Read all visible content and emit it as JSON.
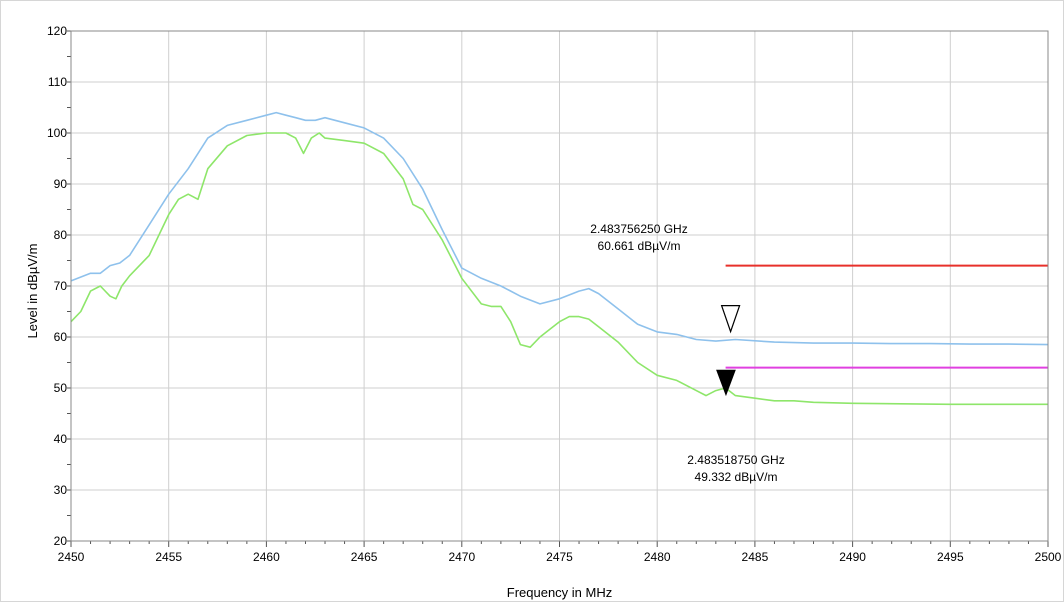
{
  "chart_data": {
    "type": "line",
    "title": "",
    "xlabel": "Frequency in MHz",
    "ylabel": "Level in dBµV/m",
    "xlim": [
      2450,
      2500
    ],
    "ylim": [
      20,
      120
    ],
    "x_ticks": [
      2450,
      2455,
      2460,
      2465,
      2470,
      2475,
      2480,
      2485,
      2490,
      2495,
      2500
    ],
    "y_ticks": [
      20,
      30,
      40,
      50,
      60,
      70,
      80,
      90,
      100,
      110,
      120
    ],
    "grid": true,
    "legend": "none",
    "series": [
      {
        "color": "#8ec1ec",
        "x": [
          2450,
          2451,
          2451.5,
          2452,
          2452.5,
          2453,
          2454,
          2455,
          2456,
          2456.5,
          2457,
          2458,
          2459,
          2460,
          2460.5,
          2461,
          2461.5,
          2462,
          2462.5,
          2463,
          2464,
          2465,
          2466,
          2467,
          2468,
          2469,
          2470,
          2471,
          2472,
          2473,
          2474,
          2475,
          2476,
          2476.5,
          2477,
          2478,
          2479,
          2480,
          2481,
          2482,
          2483,
          2484,
          2486,
          2488,
          2490,
          2492,
          2494,
          2496,
          2498,
          2500
        ],
        "y": [
          71,
          72.5,
          72.5,
          74,
          74.5,
          76,
          82,
          88,
          93,
          96,
          99,
          101.5,
          102.5,
          103.5,
          104,
          103.5,
          103,
          102.5,
          102.5,
          103,
          102,
          101,
          99,
          95,
          89,
          81,
          73.5,
          71.5,
          70,
          68,
          66.5,
          67.5,
          69,
          69.5,
          68.5,
          65.5,
          62.5,
          61,
          60.5,
          59.5,
          59.2,
          59.5,
          59,
          58.8,
          58.8,
          58.7,
          58.7,
          58.6,
          58.6,
          58.5
        ]
      },
      {
        "color": "#8ee66a",
        "x": [
          2450,
          2450.5,
          2451,
          2451.5,
          2452,
          2452.3,
          2452.6,
          2453,
          2454,
          2455,
          2455.5,
          2456,
          2456.5,
          2457,
          2458,
          2459,
          2460,
          2461,
          2461.5,
          2461.9,
          2462.3,
          2462.7,
          2463,
          2464,
          2465,
          2466,
          2467,
          2467.5,
          2468,
          2469,
          2470,
          2471,
          2471.5,
          2472,
          2472.5,
          2473,
          2473.5,
          2474,
          2474.5,
          2475,
          2475.5,
          2476,
          2476.5,
          2477,
          2478,
          2479,
          2480,
          2481,
          2482,
          2482.5,
          2483,
          2483.5,
          2484,
          2485,
          2486,
          2487,
          2488,
          2490,
          2495,
          2500
        ],
        "y": [
          63,
          65,
          69,
          70,
          68,
          67.5,
          70,
          72,
          76,
          84,
          87,
          88,
          87,
          93,
          97.5,
          99.5,
          100,
          100,
          99,
          96,
          99,
          100,
          99,
          98.5,
          98,
          96,
          91,
          86,
          85,
          79,
          71.5,
          66.5,
          66,
          66,
          63,
          58.5,
          58,
          60,
          61.5,
          63,
          64,
          64,
          63.5,
          62,
          59,
          55,
          52.5,
          51.5,
          49.5,
          48.5,
          49.5,
          50,
          48.5,
          48,
          47.5,
          47.5,
          47.2,
          47,
          46.8,
          46.8
        ]
      },
      {
        "color": "#e8302a",
        "x": [
          2483.5,
          2500
        ],
        "y": [
          74,
          74
        ]
      },
      {
        "color": "#e040e0",
        "x": [
          2483.5,
          2500
        ],
        "y": [
          54,
          54
        ]
      }
    ],
    "markers": [
      {
        "style": "open",
        "x": 2483.7563,
        "y": 60.661,
        "label_freq": "2.483756250 GHz",
        "label_level": "60.661 dBµV/m"
      },
      {
        "style": "filled",
        "x": 2483.5188,
        "y": 49.332,
        "label_freq": "2.483518750 GHz",
        "label_level": "49.332 dBµV/m"
      }
    ]
  }
}
